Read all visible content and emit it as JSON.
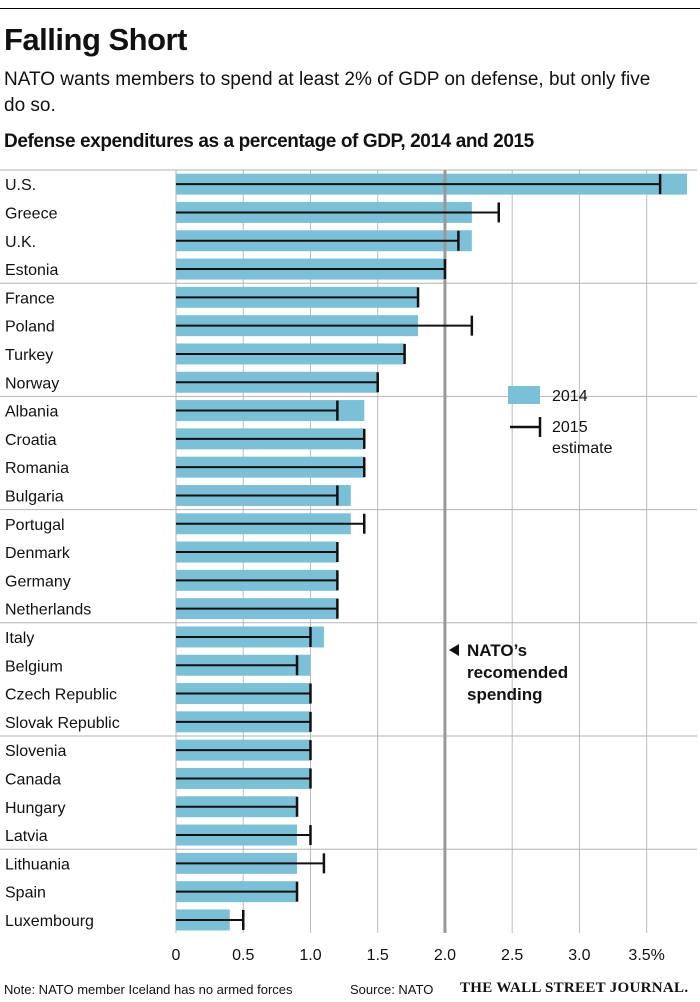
{
  "header": {
    "title": "Falling Short",
    "subtitle": "NATO wants members to spend at least 2% of GDP on defense, but only five do so.",
    "chart_title": "Defense expenditures as a percentage of GDP, 2014 and 2015"
  },
  "legend": {
    "label_2014": "2014",
    "label_2015_line1": "2015",
    "label_2015_line2": "estimate"
  },
  "annotation": {
    "line1": "NATO’s",
    "line2": "recomended",
    "line3": "spending"
  },
  "footer": {
    "note": "Note: NATO member Iceland has no armed forces",
    "source": "Source: NATO",
    "brand": "THE WALL STREET JOURNAL."
  },
  "colors": {
    "bar": "#7cc0d8",
    "error": "#111111",
    "grid": "#bbbbbb",
    "reference": "#999999",
    "separator": "#b3b3b3"
  },
  "chart_data": {
    "type": "bar",
    "orientation": "horizontal",
    "title": "Defense expenditures as a percentage of GDP, 2014 and 2015",
    "categories": [
      "U.S.",
      "Greece",
      "U.K.",
      "Estonia",
      "France",
      "Poland",
      "Turkey",
      "Norway",
      "Albania",
      "Croatia",
      "Romania",
      "Bulgaria",
      "Portugal",
      "Denmark",
      "Germany",
      "Netherlands",
      "Italy",
      "Belgium",
      "Czech Republic",
      "Slovak Republic",
      "Slovenia",
      "Canada",
      "Hungary",
      "Latvia",
      "Lithuania",
      "Spain",
      "Luxembourg"
    ],
    "series": [
      {
        "name": "2014",
        "style": "bar",
        "values": [
          3.8,
          2.2,
          2.2,
          2.0,
          1.8,
          1.8,
          1.7,
          1.5,
          1.4,
          1.4,
          1.4,
          1.3,
          1.3,
          1.2,
          1.2,
          1.2,
          1.1,
          1.0,
          1.0,
          1.0,
          1.0,
          1.0,
          0.9,
          0.9,
          0.9,
          0.9,
          0.4
        ]
      },
      {
        "name": "2015 estimate",
        "style": "error-line",
        "values": [
          3.6,
          2.4,
          2.1,
          2.0,
          1.8,
          2.2,
          1.7,
          1.5,
          1.2,
          1.4,
          1.4,
          1.2,
          1.4,
          1.2,
          1.2,
          1.2,
          1.0,
          0.9,
          1.0,
          1.0,
          1.0,
          1.0,
          0.9,
          1.0,
          1.1,
          0.9,
          0.5
        ]
      }
    ],
    "xlim": [
      0,
      3.8
    ],
    "xticks": [
      0,
      0.5,
      1.0,
      1.5,
      2.0,
      2.5,
      3.0,
      3.5
    ],
    "xtick_labels": [
      "0",
      "0.5",
      "1.0",
      "1.5",
      "2.0",
      "2.5",
      "3.0",
      "3.5%"
    ],
    "reference_line": {
      "value": 2.0,
      "label": "NATO’s recomended spending"
    },
    "group_size": 4,
    "grid": true,
    "legend_position": "right"
  }
}
